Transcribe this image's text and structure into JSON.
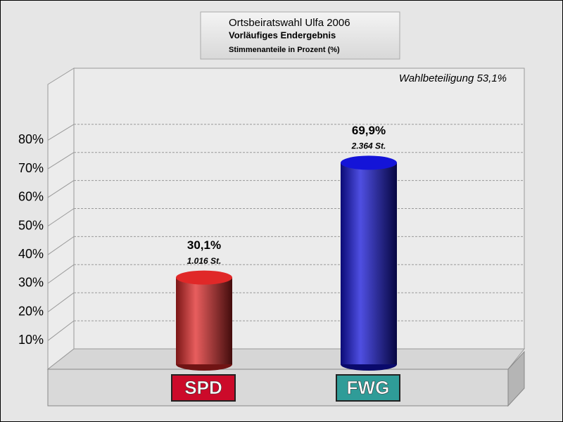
{
  "chart_data": {
    "type": "bar",
    "title": "Ortsbeiratswahl Ulfa 2006",
    "subtitle": "Vorläufiges Endergebnis",
    "unit_note": "Stimmenanteile in Prozent (%)",
    "annotation": "Wahlbeteiligung 53,1%",
    "categories": [
      "SPD",
      "FWG"
    ],
    "category_colors": [
      "#cc0a2a",
      "#2f9c98"
    ],
    "values": [
      30.1,
      69.9
    ],
    "value_labels": [
      "30,1%",
      "69,9%"
    ],
    "colors": [
      "#e02828",
      "#1414d8"
    ],
    "votes": {
      "values": [
        1016,
        2364
      ],
      "value_labels": [
        "1.016 St.",
        "2.364 St."
      ]
    },
    "ylim": [
      0,
      100
    ],
    "yticks": [
      {
        "value": 10,
        "label": "10%"
      },
      {
        "value": 20,
        "label": "20%"
      },
      {
        "value": 30,
        "label": "30%"
      },
      {
        "value": 40,
        "label": "40%"
      },
      {
        "value": 50,
        "label": "50%"
      },
      {
        "value": 60,
        "label": "60%"
      },
      {
        "value": 70,
        "label": "70%"
      },
      {
        "value": 80,
        "label": "80%"
      }
    ],
    "grid": true
  }
}
